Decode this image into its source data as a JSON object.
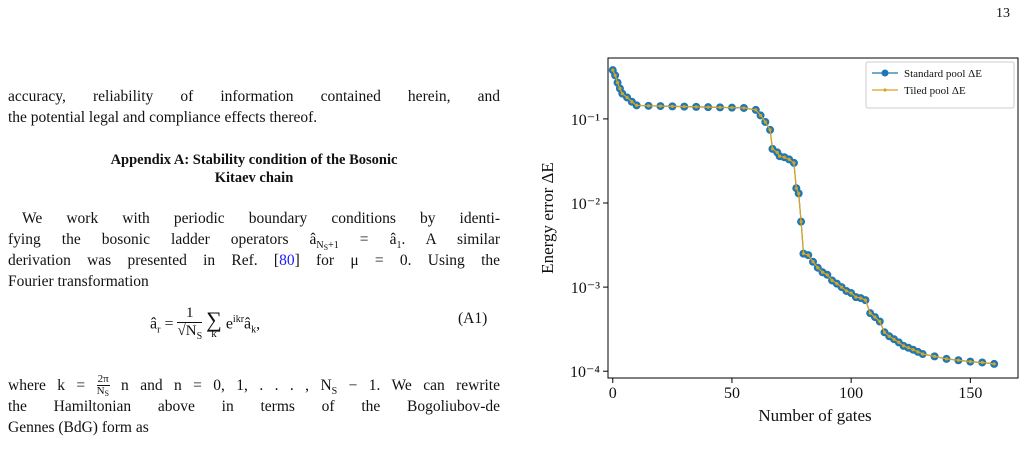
{
  "page_number": "13",
  "body": {
    "paragraph_1": [
      "accuracy, reliability of information contained herein, and",
      "the potential legal and compliance effects thereof."
    ],
    "heading": [
      "Appendix A: Stability condition of the Bosonic",
      "Kitaev chain"
    ],
    "paragraph_2": {
      "line_1": "We work with periodic boundary conditions by identi-",
      "line_2": [
        "fying the bosonic ladder operators â",
        "N",
        "S",
        "+1",
        " = â",
        "1",
        ". A similar"
      ],
      "line_3": [
        "derivation was presented in Ref. [",
        "80",
        "] for μ = 0. Using the"
      ],
      "line_4": "Fourier transformation"
    },
    "equation": {
      "lhs_base": "â",
      "lhs_sub": "r",
      "equals": "=",
      "frac_num": "1",
      "frac_den_base": "√N",
      "frac_den_sub": "S",
      "sum": "∑",
      "sum_sub": "k",
      "exp_base": "e",
      "exp_sup": "ikr",
      "op_base": "â",
      "op_sub": "k",
      "comma": ",",
      "label": "(A1)"
    },
    "paragraph_3": {
      "line_1": [
        "where k = ",
        "2π",
        "N",
        "S",
        " n and n = 0, 1, . . . , N",
        "S",
        " − 1. We can rewrite"
      ],
      "line_2": "the Hamiltonian above in terms of the Bogoliubov-de",
      "line_3": "Gennes (BdG) form as"
    }
  },
  "chart_data": {
    "type": "line",
    "xlabel": "Number of gates",
    "ylabel": "Energy error ΔE",
    "log_y": true,
    "legend": "upper right",
    "x": [
      0,
      1,
      2,
      3,
      4,
      6,
      8,
      10,
      15,
      20,
      25,
      30,
      35,
      40,
      45,
      50,
      55,
      60,
      62,
      64,
      66,
      67,
      69,
      70,
      72,
      74,
      76,
      77,
      78,
      79,
      80,
      82,
      84,
      86,
      88,
      90,
      92,
      94,
      96,
      98,
      100,
      102,
      104,
      106,
      108,
      110,
      112,
      114,
      116,
      118,
      120,
      122,
      124,
      126,
      128,
      130,
      135,
      140,
      145,
      150,
      155,
      160
    ],
    "series": [
      {
        "name": "Standard pool ΔE",
        "color": "#1f77b4",
        "marker": "large",
        "values": [
          0.38,
          0.33,
          0.27,
          0.23,
          0.2,
          0.18,
          0.16,
          0.145,
          0.143,
          0.142,
          0.141,
          0.14,
          0.139,
          0.138,
          0.137,
          0.136,
          0.135,
          0.128,
          0.11,
          0.092,
          0.074,
          0.044,
          0.04,
          0.036,
          0.035,
          0.033,
          0.03,
          0.015,
          0.013,
          0.006,
          0.0025,
          0.0024,
          0.002,
          0.0017,
          0.0015,
          0.0014,
          0.0012,
          0.0011,
          0.001,
          0.0009,
          0.00085,
          0.00076,
          0.00074,
          0.0007,
          0.00049,
          0.00044,
          0.00039,
          0.00029,
          0.00026,
          0.00024,
          0.00022,
          0.0002,
          0.00019,
          0.00018,
          0.00017,
          0.00016,
          0.00015,
          0.00014,
          0.000135,
          0.00013,
          0.000127,
          0.000122
        ]
      },
      {
        "name": "Tiled pool ΔE",
        "color": "#d9a520",
        "marker": "small",
        "values": [
          0.38,
          0.33,
          0.27,
          0.23,
          0.2,
          0.18,
          0.16,
          0.145,
          0.143,
          0.142,
          0.141,
          0.14,
          0.139,
          0.138,
          0.137,
          0.136,
          0.135,
          0.128,
          0.11,
          0.092,
          0.074,
          0.044,
          0.04,
          0.036,
          0.035,
          0.033,
          0.03,
          0.015,
          0.013,
          0.006,
          0.0025,
          0.0024,
          0.002,
          0.0017,
          0.0015,
          0.0014,
          0.0012,
          0.0011,
          0.001,
          0.0009,
          0.00085,
          0.00076,
          0.00074,
          0.0007,
          0.00049,
          0.00044,
          0.00039,
          0.00029,
          0.00026,
          0.00024,
          0.00022,
          0.0002,
          0.00019,
          0.00018,
          0.00017,
          0.00016,
          0.00015,
          0.00014,
          0.000135,
          0.00013,
          0.000127,
          0.000122
        ]
      }
    ],
    "xlim": [
      -2,
      170
    ],
    "xticks": [
      0,
      50,
      100,
      150
    ],
    "ylim": [
      8.3e-05,
      0.53
    ],
    "yticks": [
      {
        "value": 0.0001,
        "label": "10⁻⁴"
      },
      {
        "value": 0.001,
        "label": "10⁻³"
      },
      {
        "value": 0.01,
        "label": "10⁻²"
      },
      {
        "value": 0.1,
        "label": "10⁻¹"
      }
    ]
  }
}
